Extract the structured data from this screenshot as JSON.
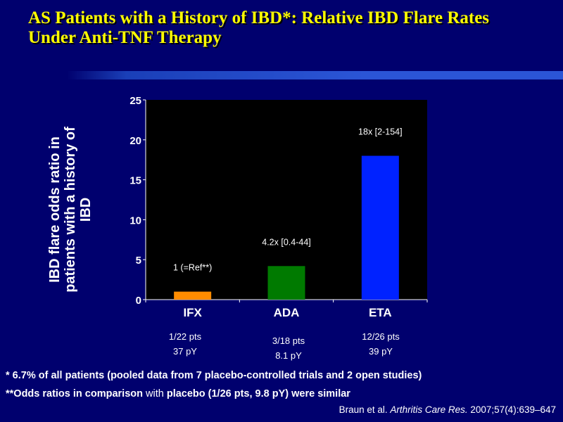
{
  "title": {
    "line1": "AS Patients with a History of IBD*: Relative IBD Flare Rates",
    "line2": "Under Anti-TNF Therapy"
  },
  "colors": {
    "background": "#00006e",
    "title": "#ffff00",
    "plot_area": "#000000",
    "IFX": "#ff8c00",
    "ADA": "#007a00",
    "ETA": "#0022ff"
  },
  "chart_data": {
    "type": "bar",
    "categories": [
      "IFX",
      "ADA",
      "ETA"
    ],
    "values": [
      1,
      4.2,
      18
    ],
    "data_labels": [
      "1 (=Ref**)",
      "4.2x [0.4-44]",
      "18x [2-154]"
    ],
    "bar_colors": [
      "#ff8c00",
      "#007a00",
      "#0022ff"
    ],
    "ylabel": "IBD flare odds ratio in patients with a history of IBD",
    "ylim": [
      0,
      25
    ],
    "yticks": [
      0,
      5,
      10,
      15,
      20,
      25
    ],
    "grid": false
  },
  "subtitles": [
    {
      "pts": "1/22 pts",
      "py": "37 pY"
    },
    {
      "pts": "3/18 pts",
      "py": "8.1 pY"
    },
    {
      "pts": "12/26 pts",
      "py": "39 pY"
    }
  ],
  "footnotes": {
    "note1": "*  6.7% of all patients (pooled data from 7 placebo-controlled trials and 2 open studies)",
    "note2_bold": "**Odds ratios in comparison",
    "note2_normal": " with ",
    "note2_rest": "placebo (1/26 pts, 9.8 pY) were similar"
  },
  "citation": {
    "authors": "Braun et al. ",
    "journal": "Arthritis Care Res.",
    "ref": " 2007;57(4):639–647"
  }
}
